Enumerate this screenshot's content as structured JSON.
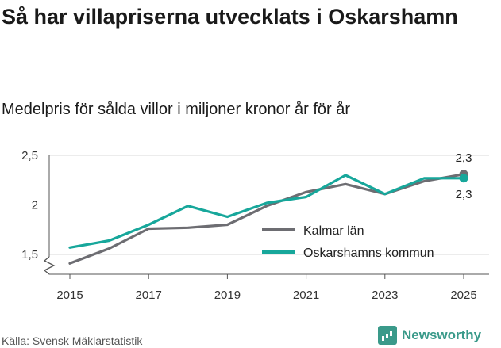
{
  "title": "Så har villapriserna utvecklats i Oskarshamn",
  "subtitle": "Medelpris för sålda villor i miljoner kronor år för år",
  "source": "Källa: Svensk Mäklarstatistik",
  "brand": "Newsworthy",
  "colors": {
    "series1": "#6d6d72",
    "series2": "#17a79b",
    "grid": "#d9d9d9",
    "axis": "#555555",
    "brand": "#3a9a8a"
  },
  "chart_data": {
    "type": "line",
    "title": "Så har villapriserna utvecklats i Oskarshamn",
    "subtitle": "Medelpris för sålda villor i miljoner kronor år för år",
    "x": [
      2015,
      2016,
      2017,
      2018,
      2019,
      2020,
      2021,
      2022,
      2023,
      2024,
      2025
    ],
    "xticks": [
      2015,
      2017,
      2019,
      2021,
      2023,
      2025
    ],
    "xtick_labels": [
      "2015",
      "2017",
      "2019",
      "2021",
      "2023",
      "2025"
    ],
    "yticks": [
      1.5,
      2,
      2.5
    ],
    "ytick_labels": [
      "1,5",
      "2",
      "2,5"
    ],
    "ylim": [
      1.3,
      2.5
    ],
    "series": [
      {
        "name": "Kalmar län",
        "values": [
          1.41,
          1.56,
          1.76,
          1.77,
          1.8,
          1.99,
          2.13,
          2.21,
          2.11,
          2.24,
          2.31
        ],
        "end_label": "2,3"
      },
      {
        "name": "Oskarshamns kommun",
        "values": [
          1.57,
          1.64,
          1.8,
          1.99,
          1.88,
          2.02,
          2.08,
          2.3,
          2.11,
          2.27,
          2.27
        ],
        "end_label": "2,3"
      }
    ],
    "legend": "inside-right",
    "grid": true
  }
}
